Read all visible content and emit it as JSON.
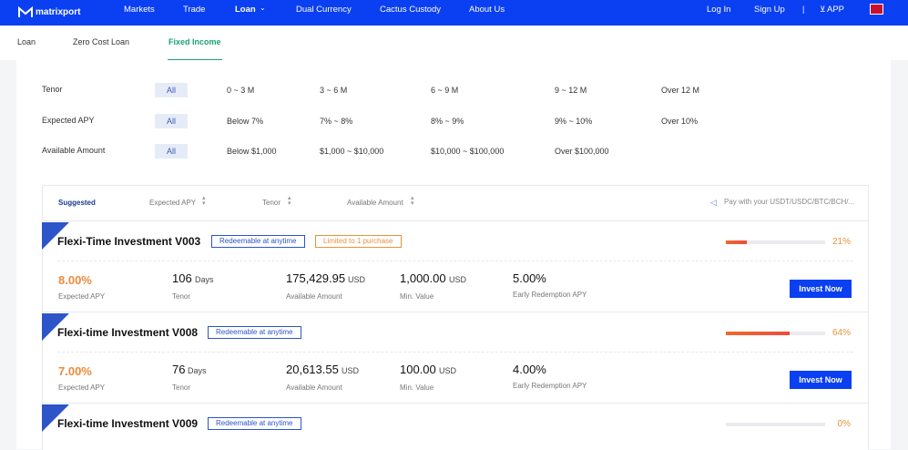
{
  "nav": {
    "logo": "matrixport",
    "links": [
      "Markets",
      "Trade",
      "Loan",
      "Dual Currency",
      "Cactus Custody",
      "About Us"
    ],
    "right": [
      "Log In",
      "Sign Up",
      "APP"
    ]
  },
  "tabs": [
    "Loan",
    "Zero Cost Loan",
    "Fixed Income"
  ],
  "filters": [
    {
      "label": "Tenor",
      "options": [
        "All",
        "0 ~ 3 M",
        "3 ~ 6 M",
        "6 ~ 9 M",
        "9 ~ 12 M",
        "Over 12 M"
      ]
    },
    {
      "label": "Expected APY",
      "options": [
        "All",
        "Below 7%",
        "7% ~ 8%",
        "8% ~ 9%",
        "9% ~ 10%",
        "Over 10%"
      ]
    },
    {
      "label": "Available Amount",
      "options": [
        "All",
        "Below $1,000",
        "$1,000 ~ $10,000",
        "$10,000 ~ $100,000",
        "Over $100,000"
      ]
    }
  ],
  "sort": {
    "items": [
      "Suggested",
      "Expected APY",
      "Tenor",
      "Available Amount"
    ],
    "notice": "Pay with your USDT/USDC/BTC/BCH/..."
  },
  "products": [
    {
      "name": "Flexi-Time Investment V003",
      "tags": [
        "Redeemable at anytime",
        "Limited to 1 purchase"
      ],
      "progress": 21,
      "progress_label": "21%",
      "apy": "8.00%",
      "apy_label": "Expected APY",
      "tenor": "106",
      "tenor_unit": "Days",
      "tenor_label": "Tenor",
      "amount": "175,429.95",
      "amount_unit": "USD",
      "amount_label": "Available Amount",
      "min": "1,000.00",
      "min_unit": "USD",
      "min_label": "Min. Value",
      "early": "5.00%",
      "early_label": "Early Redemption APY",
      "button": "Invest Now"
    },
    {
      "name": "Flexi-time Investment V008",
      "tags": [
        "Redeemable at anytime"
      ],
      "progress": 64,
      "progress_label": "64%",
      "apy": "7.00%",
      "apy_label": "Expected APY",
      "tenor": "76",
      "tenor_unit": "Days",
      "tenor_label": "Tenor",
      "amount": "20,613.55",
      "amount_unit": "USD",
      "amount_label": "Available Amount",
      "min": "100.00",
      "min_unit": "USD",
      "min_label": "Min. Value",
      "early": "4.00%",
      "early_label": "Early Redemption APY",
      "button": "Invest Now"
    },
    {
      "name": "Flexi-time Investment V009",
      "tags": [
        "Redeemable at anytime"
      ],
      "progress": 0,
      "progress_label": "0%"
    }
  ]
}
